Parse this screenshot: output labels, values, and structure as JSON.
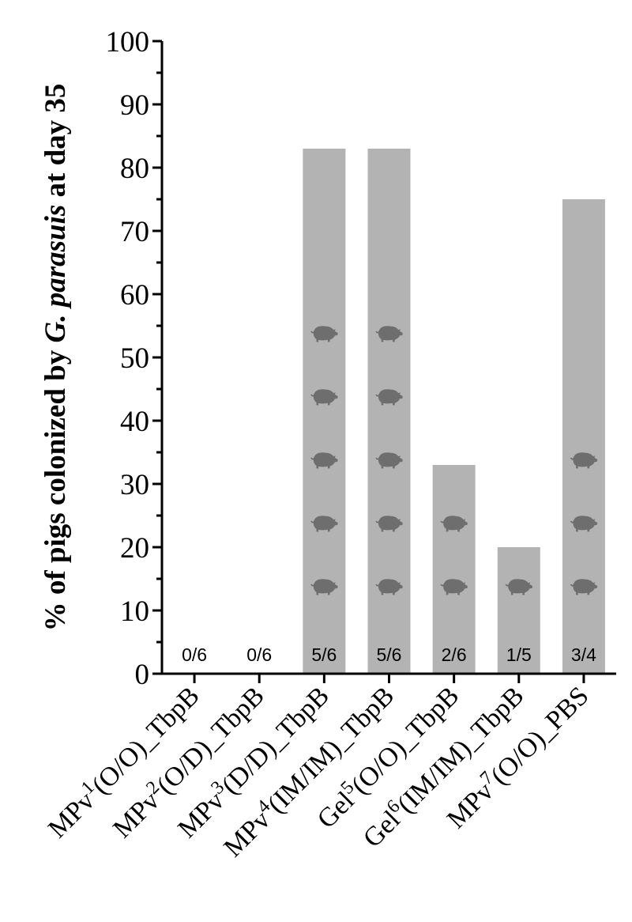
{
  "chart_data": {
    "type": "bar",
    "ylabel_parts": [
      {
        "text": "% of pigs colonized by ",
        "italic": false
      },
      {
        "text": "G. parasuis",
        "italic": true
      },
      {
        "text": " at day 35",
        "italic": false
      }
    ],
    "ylim": [
      0,
      100
    ],
    "yticks": [
      "0",
      "10",
      "20",
      "30",
      "40",
      "50",
      "60",
      "70",
      "80",
      "90",
      "100"
    ],
    "grid": false,
    "bar_color": "#b3b3b3",
    "icon_color": "#6e6e6e",
    "categories": [
      {
        "base": "MPv",
        "sup": "1",
        "suffix": "(O/O)_TbpB"
      },
      {
        "base": "MPv",
        "sup": "2",
        "suffix": "(O/D)_TbpB"
      },
      {
        "base": "MPv",
        "sup": "3",
        "suffix": "(D/D)_TbpB"
      },
      {
        "base": "MPv",
        "sup": "4",
        "suffix": "(IM/IM)_TbpB"
      },
      {
        "base": "Gel",
        "sup": "5",
        "suffix": "(O/O)_TbpB"
      },
      {
        "base": "Gel",
        "sup": "6",
        "suffix": "(IM/IM)_TbpB"
      },
      {
        "base": "MPv",
        "sup": "7",
        "suffix": "(O/O)_PBS"
      }
    ],
    "values": [
      0,
      0,
      83,
      83,
      33,
      20,
      75
    ],
    "counts": [
      "0/6",
      "0/6",
      "5/6",
      "5/6",
      "2/6",
      "1/5",
      "3/4"
    ],
    "pig_icons": [
      0,
      0,
      5,
      5,
      2,
      1,
      3
    ]
  }
}
